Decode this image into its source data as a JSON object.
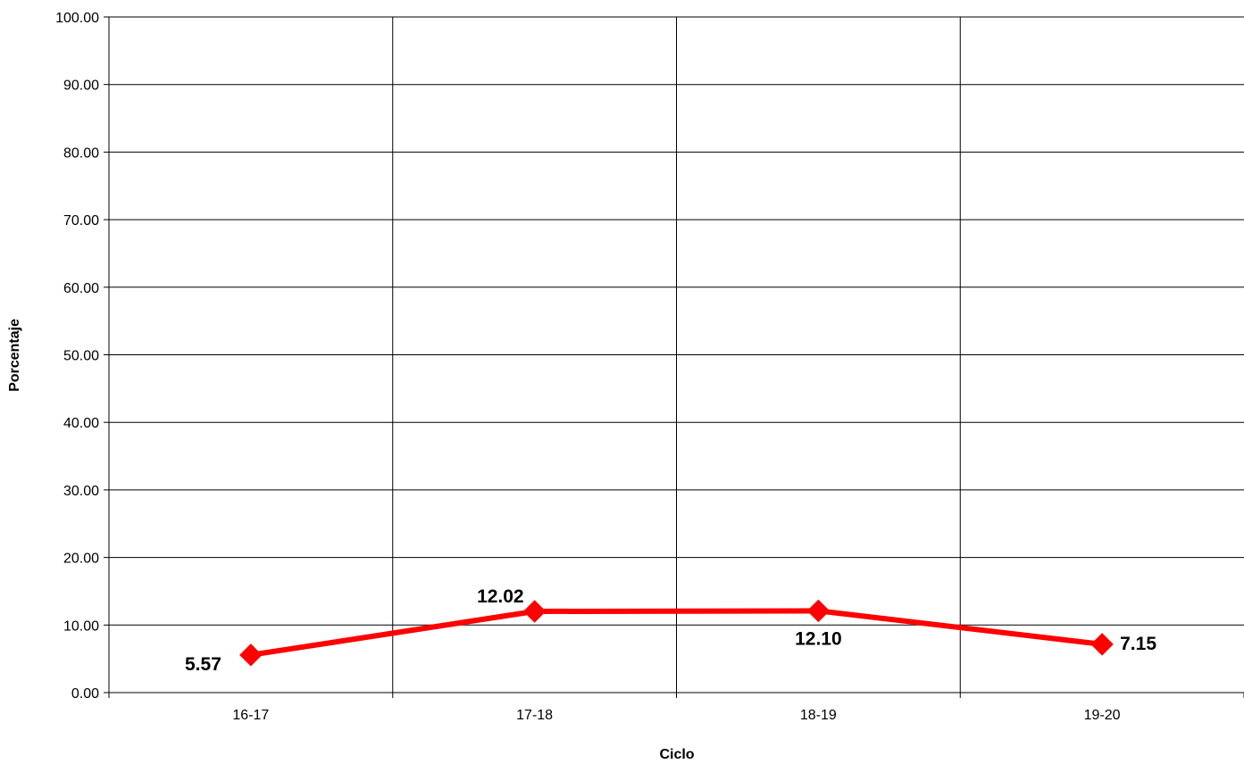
{
  "chart_data": {
    "type": "line",
    "title": "",
    "xlabel": "Ciclo",
    "ylabel": "Porcentaje",
    "categories": [
      "16-17",
      "17-18",
      "18-19",
      "19-20"
    ],
    "series": [
      {
        "values": [
          5.57,
          12.02,
          12.1,
          7.15
        ],
        "labels": [
          "5.57",
          "12.02",
          "12.10",
          "7.15"
        ],
        "color": "#ff0000"
      }
    ],
    "ylim": [
      0,
      100
    ],
    "yticks": [
      "0.00",
      "10.00",
      "20.00",
      "30.00",
      "40.00",
      "50.00",
      "60.00",
      "70.00",
      "80.00",
      "90.00",
      "100.00"
    ],
    "grid": true,
    "legend": "none",
    "marker": "diamond"
  }
}
